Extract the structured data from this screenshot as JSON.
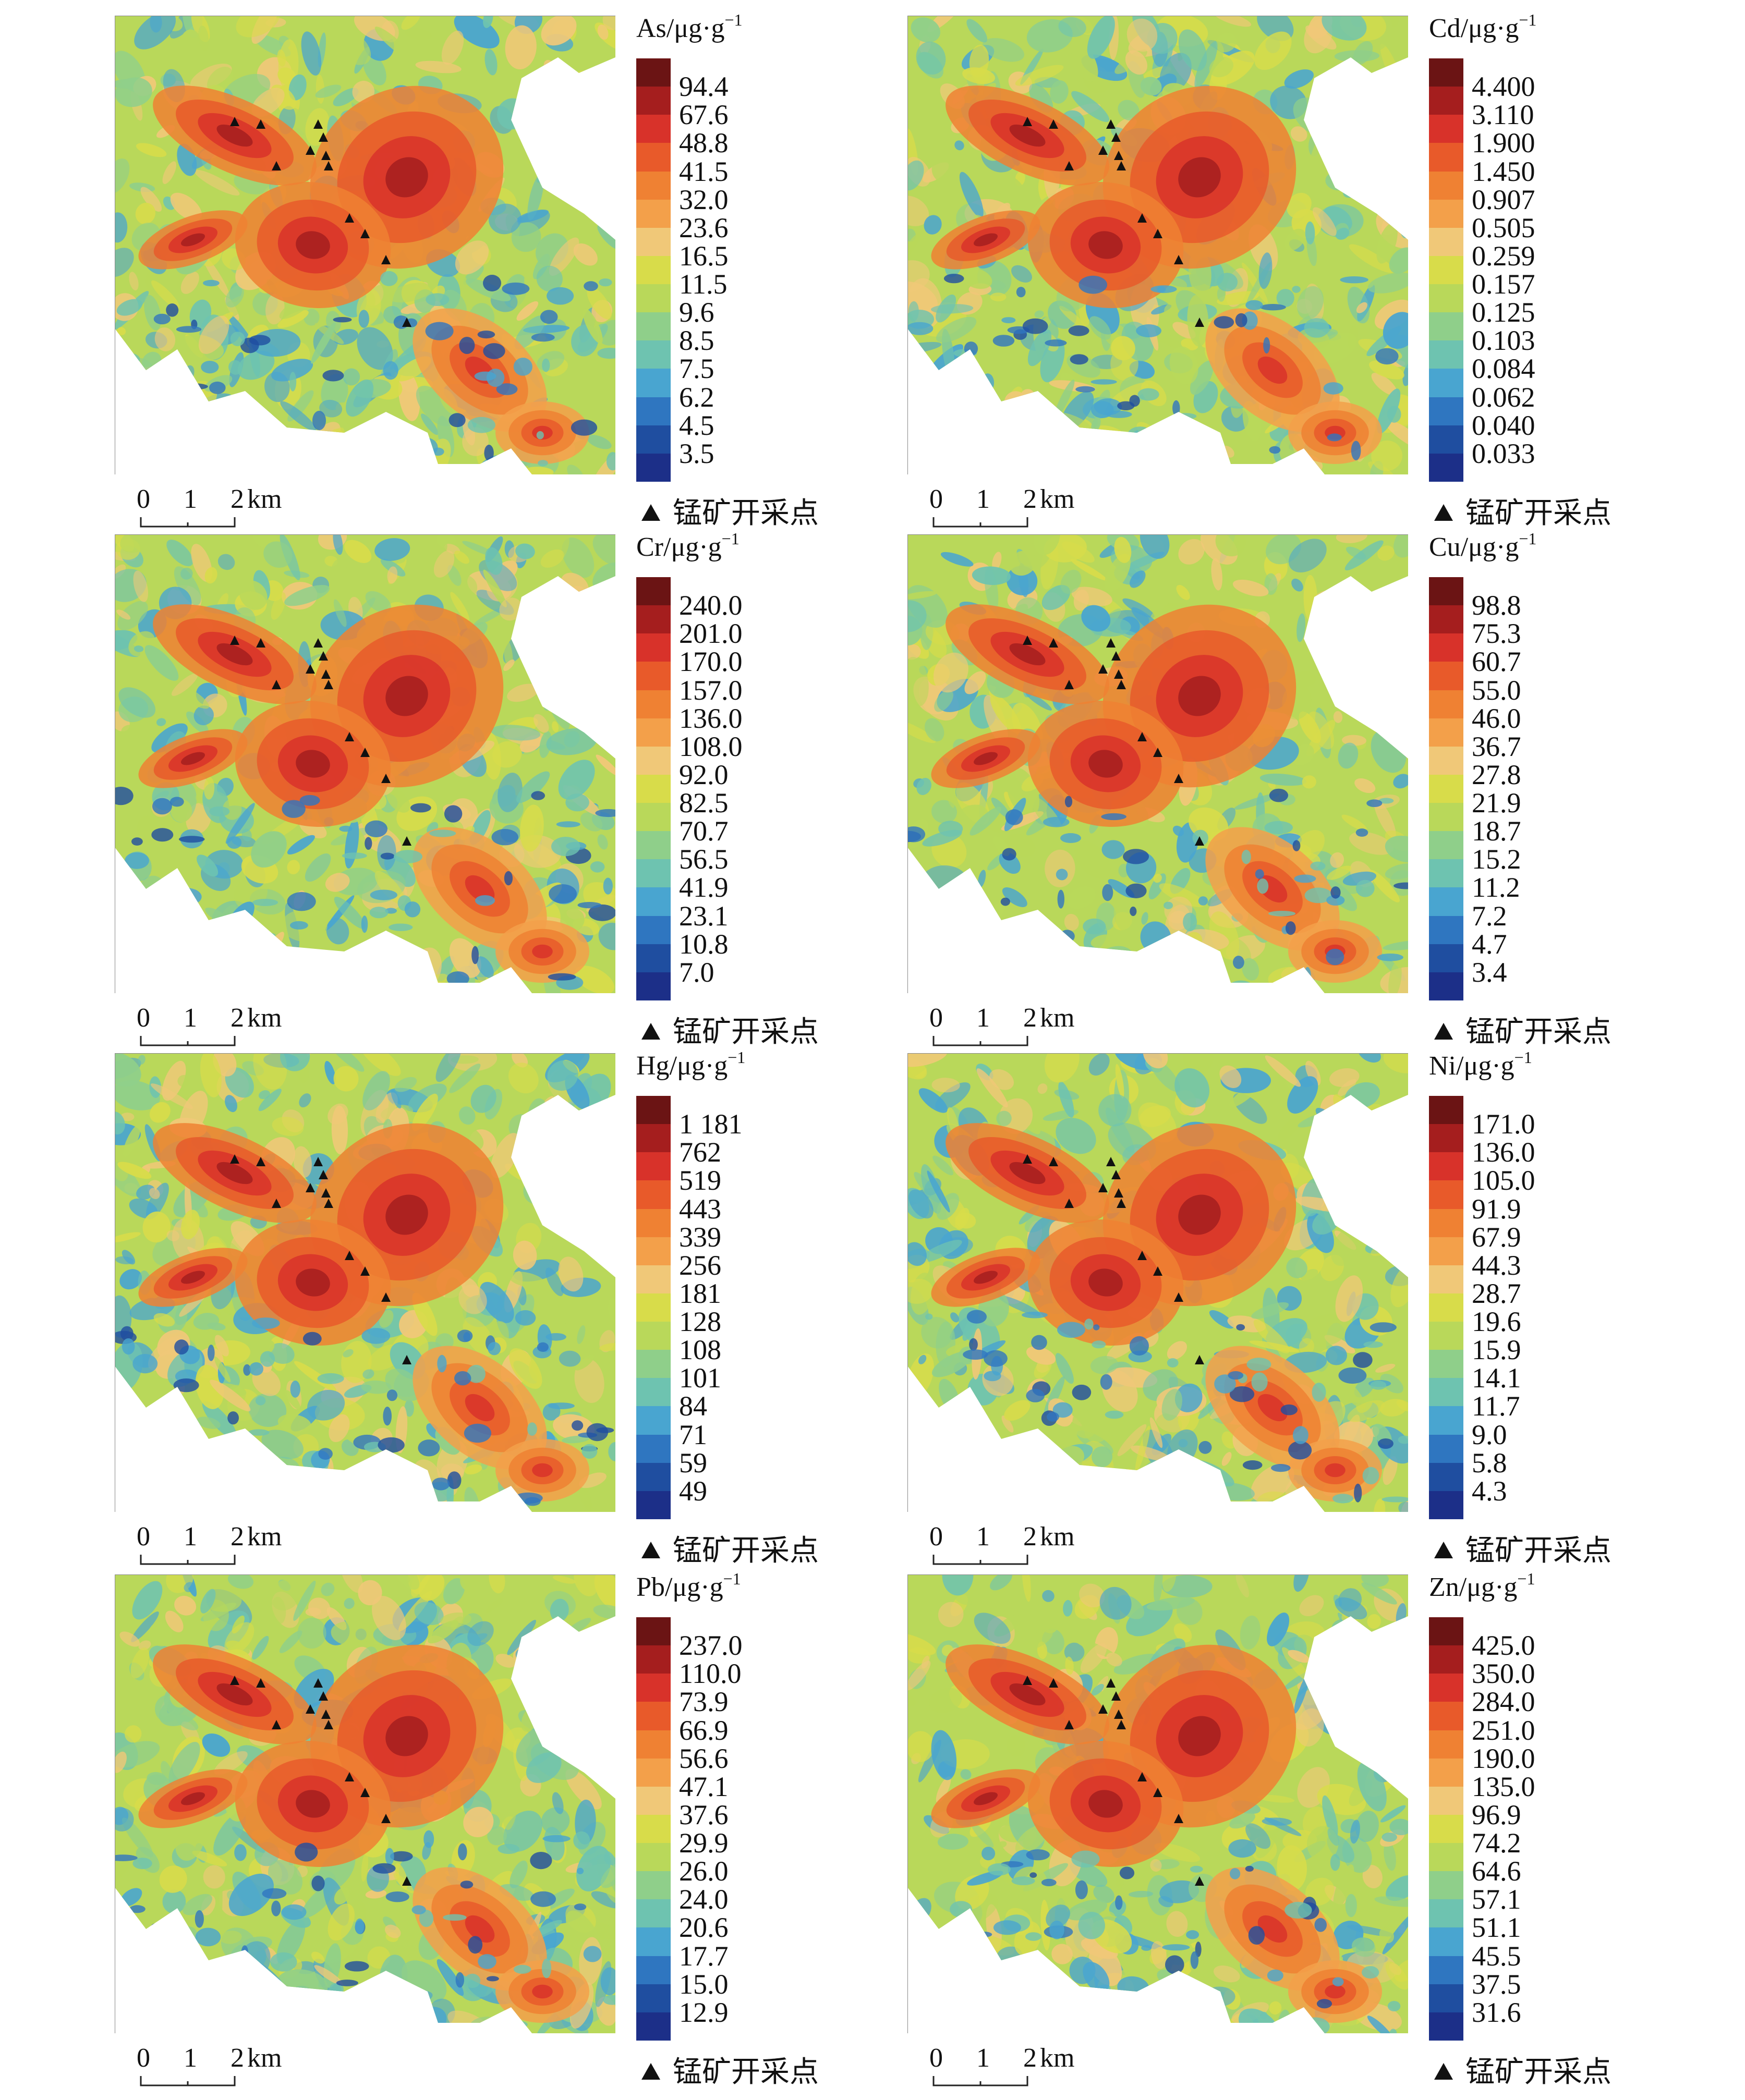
{
  "legend_key_label": "锰矿开采点",
  "scalebar": {
    "ticks": [
      "0",
      "1",
      "2"
    ],
    "unit": "km"
  },
  "color_ramp": [
    "#6b1414",
    "#a51e1e",
    "#d8322a",
    "#e85a2a",
    "#ef8133",
    "#f3a04a",
    "#f0c878",
    "#d8dc4a",
    "#b9d85a",
    "#8fcf8a",
    "#6ec3b0",
    "#49a5d0",
    "#2f76c0",
    "#1f4ea0",
    "#1c2f88"
  ],
  "panels": [
    {
      "element": "As",
      "unit": "/μg·g",
      "exponent": "−1",
      "legend_values": [
        "94.4",
        "67.6",
        "48.8",
        "41.5",
        "32.0",
        "23.6",
        "16.5",
        "11.5",
        "9.6",
        "8.5",
        "7.5",
        "6.2",
        "4.5",
        "3.5"
      ]
    },
    {
      "element": "Cd",
      "unit": "/μg·g",
      "exponent": "−1",
      "legend_values": [
        "4.400",
        "3.110",
        "1.900",
        "1.450",
        "0.907",
        "0.505",
        "0.259",
        "0.157",
        "0.125",
        "0.103",
        "0.084",
        "0.062",
        "0.040",
        "0.033"
      ]
    },
    {
      "element": "Cr",
      "unit": "/μg·g",
      "exponent": "−1",
      "legend_values": [
        "240.0",
        "201.0",
        "170.0",
        "157.0",
        "136.0",
        "108.0",
        "92.0",
        "82.5",
        "70.7",
        "56.5",
        "41.9",
        "23.1",
        "10.8",
        "7.0"
      ]
    },
    {
      "element": "Cu",
      "unit": "/μg·g",
      "exponent": "−1",
      "legend_values": [
        "98.8",
        "75.3",
        "60.7",
        "55.0",
        "46.0",
        "36.7",
        "27.8",
        "21.9",
        "18.7",
        "15.2",
        "11.2",
        "7.2",
        "4.7",
        "3.4"
      ]
    },
    {
      "element": "Hg",
      "unit": "/μg·g",
      "exponent": "−1",
      "legend_values": [
        "1 181",
        "762",
        "519",
        "443",
        "339",
        "256",
        "181",
        "128",
        "108",
        "101",
        "84",
        "71",
        "59",
        "49"
      ]
    },
    {
      "element": "Ni",
      "unit": "/μg·g",
      "exponent": "−1",
      "legend_values": [
        "171.0",
        "136.0",
        "105.0",
        "91.9",
        "67.9",
        "44.3",
        "28.7",
        "19.6",
        "15.9",
        "14.1",
        "11.7",
        "9.0",
        "5.8",
        "4.3"
      ]
    },
    {
      "element": "Pb",
      "unit": "/μg·g",
      "exponent": "−1",
      "legend_values": [
        "237.0",
        "110.0",
        "73.9",
        "66.9",
        "56.6",
        "47.1",
        "37.6",
        "29.9",
        "26.0",
        "24.0",
        "20.6",
        "17.7",
        "15.0",
        "12.9"
      ]
    },
    {
      "element": "Zn",
      "unit": "/μg·g",
      "exponent": "−1",
      "legend_values": [
        "425.0",
        "350.0",
        "284.0",
        "251.0",
        "190.0",
        "135.0",
        "96.9",
        "74.2",
        "64.6",
        "57.1",
        "51.1",
        "45.5",
        "37.5",
        "31.6"
      ]
    }
  ]
}
